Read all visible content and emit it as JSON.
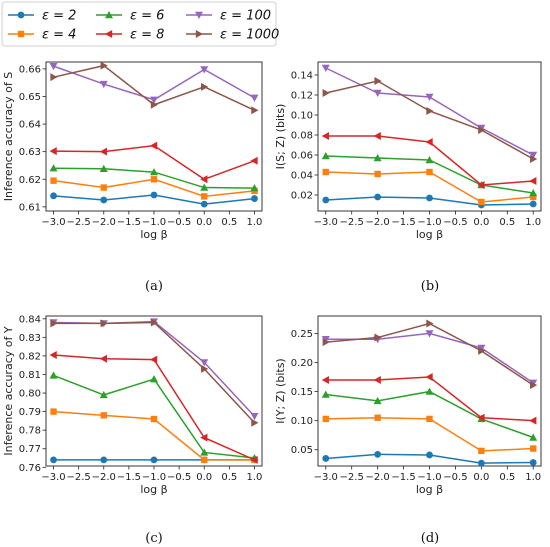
{
  "legend": {
    "entries": [
      {
        "label": "ε = 2",
        "color": "#1f77b4",
        "marker": "circle"
      },
      {
        "label": "ε = 4",
        "color": "#ff7f0e",
        "marker": "square"
      },
      {
        "label": "ε = 6",
        "color": "#2ca02c",
        "marker": "triangle-up"
      },
      {
        "label": "ε = 8",
        "color": "#d62728",
        "marker": "triangle-left"
      },
      {
        "label": "ε = 100",
        "color": "#9467bd",
        "marker": "triangle-down"
      },
      {
        "label": "ε = 1000",
        "color": "#8c564b",
        "marker": "triangle-right"
      }
    ]
  },
  "chart_data": [
    {
      "type": "line",
      "caption": "(a)",
      "xlabel": "log β",
      "ylabel": "Inference accuracy of S",
      "x": [
        -3.0,
        -2.0,
        -1.0,
        0.0,
        1.0
      ],
      "xlim": [
        -3.15,
        1.15
      ],
      "ylim": [
        0.6085,
        0.6625
      ],
      "xticks": [
        -3.0,
        -2.5,
        -2.0,
        -1.5,
        -1.0,
        -0.5,
        0.0,
        0.5,
        1.0
      ],
      "xtick_labels": [
        "−3.0",
        "−2.5",
        "−2.0",
        "−1.5",
        "−1.0",
        "−0.5",
        "0.0",
        "0.5",
        "1.0"
      ],
      "yticks": [
        0.61,
        0.62,
        0.63,
        0.64,
        0.65,
        0.66
      ],
      "ytick_labels": [
        "0.61",
        "0.62",
        "0.63",
        "0.64",
        "0.65",
        "0.66"
      ],
      "series": [
        {
          "name": "ε = 2",
          "values": [
            0.614,
            0.6125,
            0.6143,
            0.611,
            0.613
          ]
        },
        {
          "name": "ε = 4",
          "values": [
            0.6195,
            0.617,
            0.62,
            0.6138,
            0.6158
          ]
        },
        {
          "name": "ε = 6",
          "values": [
            0.624,
            0.6238,
            0.6226,
            0.617,
            0.6168
          ]
        },
        {
          "name": "ε = 8",
          "values": [
            0.6302,
            0.63,
            0.6322,
            0.62,
            0.6267
          ]
        },
        {
          "name": "ε = 100",
          "values": [
            0.661,
            0.6545,
            0.6488,
            0.6598,
            0.6495
          ]
        },
        {
          "name": "ε = 1000",
          "values": [
            0.657,
            0.6612,
            0.647,
            0.6535,
            0.645
          ]
        }
      ]
    },
    {
      "type": "line",
      "caption": "(b)",
      "xlabel": "log β",
      "ylabel": "I(S; Z) (bits)",
      "x": [
        -3.0,
        -2.0,
        -1.0,
        0.0,
        1.0
      ],
      "xlim": [
        -3.15,
        1.15
      ],
      "ylim": [
        0.004,
        0.153
      ],
      "xticks": [
        -3.0,
        -2.5,
        -2.0,
        -1.5,
        -1.0,
        -0.5,
        0.0,
        0.5,
        1.0
      ],
      "xtick_labels": [
        "−3.0",
        "−2.5",
        "−2.0",
        "−1.5",
        "−1.0",
        "−0.5",
        "0.0",
        "0.5",
        "1.0"
      ],
      "yticks": [
        0.02,
        0.04,
        0.06,
        0.08,
        0.1,
        0.12,
        0.14
      ],
      "ytick_labels": [
        "0.02",
        "0.04",
        "0.06",
        "0.08",
        "0.10",
        "0.12",
        "0.14"
      ],
      "series": [
        {
          "name": "ε = 2",
          "values": [
            0.015,
            0.018,
            0.017,
            0.01,
            0.011
          ]
        },
        {
          "name": "ε = 4",
          "values": [
            0.043,
            0.041,
            0.043,
            0.013,
            0.018
          ]
        },
        {
          "name": "ε = 6",
          "values": [
            0.059,
            0.057,
            0.055,
            0.03,
            0.022
          ]
        },
        {
          "name": "ε = 8",
          "values": [
            0.079,
            0.079,
            0.073,
            0.03,
            0.034
          ]
        },
        {
          "name": "ε = 100",
          "values": [
            0.147,
            0.122,
            0.118,
            0.087,
            0.06
          ]
        },
        {
          "name": "ε = 1000",
          "values": [
            0.122,
            0.134,
            0.104,
            0.085,
            0.056
          ]
        }
      ]
    },
    {
      "type": "line",
      "caption": "(c)",
      "xlabel": "log β",
      "ylabel": "Inference accuracy of Y",
      "x": [
        -3.0,
        -2.0,
        -1.0,
        0.0,
        1.0
      ],
      "xlim": [
        -3.15,
        1.15
      ],
      "ylim": [
        0.7607,
        0.8415
      ],
      "xticks": [
        -3.0,
        -2.5,
        -2.0,
        -1.5,
        -1.0,
        -0.5,
        0.0,
        0.5,
        1.0
      ],
      "xtick_labels": [
        "−3.0",
        "−2.5",
        "−2.0",
        "−1.5",
        "−1.0",
        "−0.5",
        "0.0",
        "0.5",
        "1.0"
      ],
      "yticks": [
        0.76,
        0.77,
        0.78,
        0.79,
        0.8,
        0.81,
        0.82,
        0.83,
        0.84
      ],
      "ytick_labels": [
        "0.76",
        "0.77",
        "0.78",
        "0.79",
        "0.80",
        "0.81",
        "0.82",
        "0.83",
        "0.84"
      ],
      "series": [
        {
          "name": "ε = 2",
          "values": [
            0.764,
            0.764,
            0.764,
            0.764,
            0.764
          ]
        },
        {
          "name": "ε = 4",
          "values": [
            0.79,
            0.788,
            0.786,
            0.764,
            0.764
          ]
        },
        {
          "name": "ε = 6",
          "values": [
            0.8095,
            0.799,
            0.8075,
            0.768,
            0.765
          ]
        },
        {
          "name": "ε = 8",
          "values": [
            0.8205,
            0.8185,
            0.818,
            0.776,
            0.764
          ]
        },
        {
          "name": "ε = 100",
          "values": [
            0.838,
            0.8375,
            0.8385,
            0.8165,
            0.7875
          ]
        },
        {
          "name": "ε = 1000",
          "values": [
            0.8375,
            0.8375,
            0.838,
            0.813,
            0.784
          ]
        }
      ]
    },
    {
      "type": "line",
      "caption": "(d)",
      "xlabel": "log β",
      "ylabel": "I(Y; Z) (bits)",
      "x": [
        -3.0,
        -2.0,
        -1.0,
        0.0,
        1.0
      ],
      "xlim": [
        -3.15,
        1.15
      ],
      "ylim": [
        0.022,
        0.28
      ],
      "xticks": [
        -3.0,
        -2.5,
        -2.0,
        -1.5,
        -1.0,
        -0.5,
        0.0,
        0.5,
        1.0
      ],
      "xtick_labels": [
        "−3.0",
        "−2.5",
        "−2.0",
        "−1.5",
        "−1.0",
        "−0.5",
        "0.0",
        "0.5",
        "1.0"
      ],
      "yticks": [
        0.05,
        0.1,
        0.15,
        0.2,
        0.25
      ],
      "ytick_labels": [
        "0.05",
        "0.10",
        "0.15",
        "0.20",
        "0.25"
      ],
      "series": [
        {
          "name": "ε = 2",
          "values": [
            0.035,
            0.042,
            0.041,
            0.027,
            0.028
          ]
        },
        {
          "name": "ε = 4",
          "values": [
            0.103,
            0.105,
            0.103,
            0.048,
            0.052
          ]
        },
        {
          "name": "ε = 6",
          "values": [
            0.145,
            0.134,
            0.15,
            0.103,
            0.071
          ]
        },
        {
          "name": "ε = 8",
          "values": [
            0.17,
            0.17,
            0.175,
            0.105,
            0.1
          ]
        },
        {
          "name": "ε = 100",
          "values": [
            0.24,
            0.24,
            0.25,
            0.225,
            0.165
          ]
        },
        {
          "name": "ε = 1000",
          "values": [
            0.235,
            0.243,
            0.267,
            0.22,
            0.161
          ]
        }
      ]
    }
  ]
}
